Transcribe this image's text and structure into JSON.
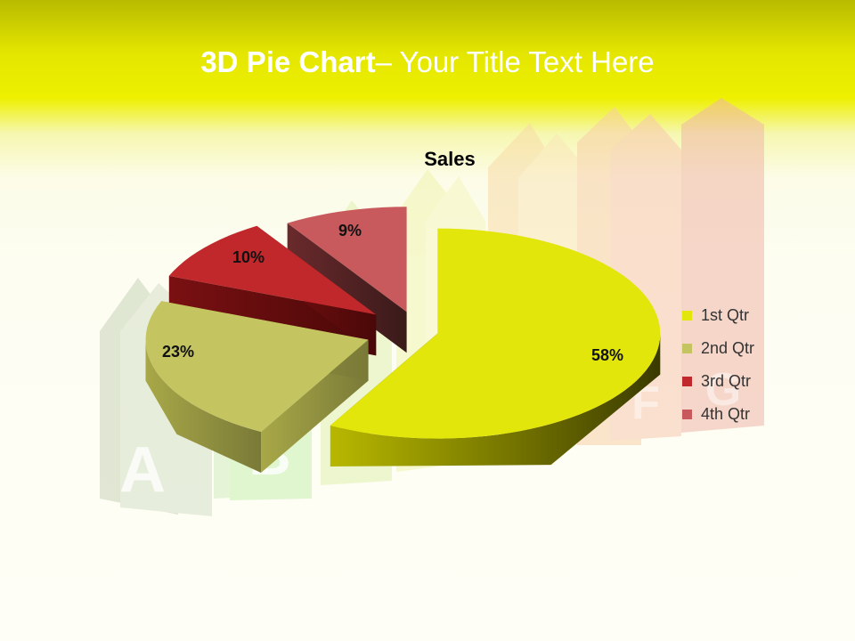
{
  "slide": {
    "title_bold": "3D Pie Chart",
    "title_rest": "– Your Title Text Here"
  },
  "background": {
    "rating_letters": [
      "A",
      "B",
      "F",
      "G"
    ]
  },
  "chart_data": {
    "type": "pie",
    "title": "Sales",
    "categories": [
      "1st Qtr",
      "2nd Qtr",
      "3rd Qtr",
      "4th Qtr"
    ],
    "values": [
      58,
      23,
      10,
      9
    ],
    "labels": [
      "58%",
      "23%",
      "10%",
      "9%"
    ],
    "colors": [
      "#e2e60a",
      "#c4c460",
      "#c0282c",
      "#c85a5e"
    ],
    "legend_position": "right",
    "exploded": true
  }
}
